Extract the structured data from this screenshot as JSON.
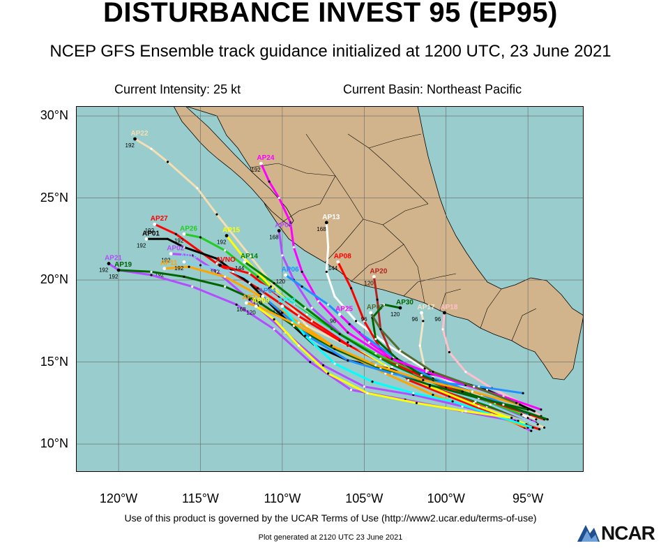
{
  "title": "DISTURBANCE INVEST 95 (EP95)",
  "subtitle": "NCEP GFS Ensemble track guidance initialized at 1200 UTC, 23 June 2021",
  "current_intensity": "Current Intensity: 25 kt",
  "current_basin": "Current Basin: Northeast Pacific",
  "terms": "Use of this product is governed by the UCAR Terms of Use (http://www2.ucar.edu/terms-of-use)",
  "generated": "Plot generated at 2120 UTC   23 June 2021",
  "logo_text": "NCAR",
  "colors": {
    "ocean": "#99cccc",
    "land": "#d2b48c",
    "border": "#000000"
  },
  "chart_data": {
    "type": "scatter",
    "x_ticks": [
      "120°W",
      "115°W",
      "110°W",
      "105°W",
      "100°W",
      "95°W"
    ],
    "y_ticks": [
      "30°N",
      "25°N",
      "20°N",
      "15°N",
      "10°N"
    ],
    "xlim": [
      -122.6,
      -91.6
    ],
    "ylim": [
      8.3,
      30.6
    ],
    "grid": true,
    "series": [
      {
        "name": "AP22",
        "color": "#f5deb3",
        "label_hour": "192",
        "points": [
          [
            -94.0,
            11.0
          ],
          [
            -97.0,
            12.3
          ],
          [
            -100.0,
            13.2
          ],
          [
            -103.0,
            14.6
          ],
          [
            -106.0,
            16.0
          ],
          [
            -108.5,
            17.2
          ],
          [
            -110.0,
            19.0
          ],
          [
            -112.0,
            21.5
          ],
          [
            -114.0,
            24.0
          ],
          [
            -115.2,
            25.6
          ],
          [
            -117.0,
            27.2
          ],
          [
            -118.0,
            28.0
          ],
          [
            -119.0,
            28.6
          ]
        ]
      },
      {
        "name": "AP24",
        "color": "#ff00ff",
        "label_hour": "192",
        "points": [
          [
            -94.5,
            11.3
          ],
          [
            -97.5,
            12.6
          ],
          [
            -100.5,
            13.7
          ],
          [
            -103.5,
            15.2
          ],
          [
            -106.0,
            16.8
          ],
          [
            -107.8,
            18.7
          ],
          [
            -108.8,
            20.5
          ],
          [
            -109.3,
            22.0
          ],
          [
            -109.5,
            23.5
          ],
          [
            -110.2,
            25.0
          ],
          [
            -110.8,
            26.0
          ],
          [
            -111.3,
            27.1
          ]
        ]
      },
      {
        "name": "AP13",
        "color": "#ffffff",
        "label_hour": "168",
        "points": [
          [
            -95.0,
            11.6
          ],
          [
            -98.0,
            13.0
          ],
          [
            -101.0,
            14.4
          ],
          [
            -103.5,
            16.0
          ],
          [
            -105.5,
            17.5
          ],
          [
            -106.8,
            19.0
          ],
          [
            -107.3,
            20.5
          ],
          [
            -107.2,
            22.0
          ],
          [
            -107.3,
            23.5
          ]
        ]
      },
      {
        "name": "AP05",
        "color": "#b44dff",
        "label_hour": "168",
        "points": [
          [
            -94.8,
            10.8
          ],
          [
            -97.7,
            12.2
          ],
          [
            -100.8,
            13.4
          ],
          [
            -103.8,
            15.0
          ],
          [
            -106.3,
            16.6
          ],
          [
            -108.2,
            18.3
          ],
          [
            -109.3,
            20.0
          ],
          [
            -110.0,
            21.5
          ],
          [
            -110.2,
            23.0
          ]
        ]
      },
      {
        "name": "AP08",
        "color": "#ff0000",
        "label_hour": "144",
        "points": [
          [
            -94.3,
            10.9
          ],
          [
            -97.0,
            11.8
          ],
          [
            -99.8,
            12.9
          ],
          [
            -102.3,
            13.9
          ],
          [
            -104.0,
            15.8
          ],
          [
            -105.0,
            17.5
          ],
          [
            -105.8,
            19.5
          ],
          [
            -106.6,
            21.1
          ]
        ]
      },
      {
        "name": "AP20",
        "color": "#b22222",
        "label_hour": "120",
        "points": [
          [
            -94.8,
            11.4
          ],
          [
            -97.5,
            12.3
          ],
          [
            -100.0,
            13.4
          ],
          [
            -102.0,
            14.2
          ],
          [
            -103.3,
            15.4
          ],
          [
            -104.0,
            17.0
          ],
          [
            -104.2,
            18.8
          ],
          [
            -104.4,
            20.2
          ]
        ]
      },
      {
        "name": "AP17",
        "color": "#f0e6c8",
        "label_hour": "96",
        "points": [
          [
            -94.5,
            11.5
          ],
          [
            -96.3,
            12.3
          ],
          [
            -98.5,
            13.2
          ],
          [
            -100.5,
            13.8
          ],
          [
            -101.3,
            14.6
          ],
          [
            -101.6,
            16.0
          ],
          [
            -101.4,
            17.5
          ],
          [
            -101.5,
            18.0
          ]
        ]
      },
      {
        "name": "AP18",
        "color": "#ffc0cb",
        "label_hour": "96",
        "points": [
          [
            -94.2,
            11.7
          ],
          [
            -95.6,
            12.6
          ],
          [
            -97.2,
            13.4
          ],
          [
            -98.8,
            14.4
          ],
          [
            -99.8,
            15.6
          ],
          [
            -100.2,
            17.0
          ],
          [
            -100.1,
            18.0
          ]
        ]
      },
      {
        "name": "AP27",
        "color": "#ff0000",
        "label_hour": "192",
        "points": [
          [
            -95.2,
            11.0
          ],
          [
            -98.3,
            12.5
          ],
          [
            -101.3,
            13.8
          ],
          [
            -104.0,
            15.0
          ],
          [
            -106.5,
            16.3
          ],
          [
            -109.0,
            17.8
          ],
          [
            -111.5,
            19.5
          ],
          [
            -114.0,
            21.0
          ],
          [
            -116.5,
            22.8
          ],
          [
            -117.8,
            23.4
          ]
        ]
      },
      {
        "name": "AP26",
        "color": "#22cc22",
        "label_hour": "192",
        "points": [
          [
            -95.4,
            11.8
          ],
          [
            -98.5,
            13.0
          ],
          [
            -101.5,
            14.2
          ],
          [
            -104.3,
            15.5
          ],
          [
            -107.0,
            17.0
          ],
          [
            -109.3,
            18.5
          ],
          [
            -111.5,
            20.2
          ],
          [
            -113.5,
            21.8
          ],
          [
            -115.0,
            22.6
          ],
          [
            -116.0,
            22.8
          ]
        ]
      },
      {
        "name": "AP15",
        "color": "#ffff00",
        "label_hour": "192",
        "points": [
          [
            -95.1,
            11.2
          ],
          [
            -98.0,
            12.3
          ],
          [
            -101.0,
            13.5
          ],
          [
            -103.7,
            14.8
          ],
          [
            -106.2,
            16.3
          ],
          [
            -108.6,
            17.8
          ],
          [
            -110.7,
            19.6
          ],
          [
            -112.3,
            21.3
          ],
          [
            -113.4,
            22.7
          ]
        ]
      },
      {
        "name": "AP01",
        "color": "#000000",
        "label_hour": "192",
        "points": [
          [
            -94.6,
            12.0
          ],
          [
            -97.5,
            13.3
          ],
          [
            -100.5,
            14.2
          ],
          [
            -103.5,
            14.6
          ],
          [
            -106.0,
            15.1
          ],
          [
            -108.0,
            16.0
          ],
          [
            -110.0,
            17.8
          ],
          [
            -112.0,
            19.8
          ],
          [
            -114.0,
            21.3
          ],
          [
            -116.0,
            22.0
          ],
          [
            -117.0,
            22.5
          ],
          [
            -118.3,
            22.5
          ]
        ]
      },
      {
        "name": "AP02",
        "color": "#b44dff",
        "label_hour": "192",
        "points": [
          [
            -95.6,
            11.4
          ],
          [
            -99.0,
            12.3
          ],
          [
            -102.0,
            13.0
          ],
          [
            -105.0,
            13.5
          ],
          [
            -107.5,
            14.8
          ],
          [
            -109.8,
            16.8
          ],
          [
            -112.0,
            18.8
          ],
          [
            -114.0,
            20.5
          ],
          [
            -115.5,
            21.5
          ],
          [
            -116.8,
            21.6
          ]
        ]
      },
      {
        "name": "AVNO",
        "color": "#ff0000",
        "label_hour": "192",
        "points": [
          [
            -94.0,
            11.5
          ],
          [
            -97.0,
            12.5
          ],
          [
            -100.0,
            13.5
          ],
          [
            -103.0,
            14.8
          ],
          [
            -105.8,
            16.0
          ],
          [
            -108.2,
            17.5
          ],
          [
            -110.2,
            19.0
          ],
          [
            -112.0,
            20.4
          ],
          [
            -113.8,
            20.9
          ]
        ]
      },
      {
        "name": "AP14",
        "color": "#008000",
        "label_hour": "144",
        "points": [
          [
            -95.3,
            11.6
          ],
          [
            -98.2,
            12.6
          ],
          [
            -101.2,
            13.8
          ],
          [
            -104.0,
            15.2
          ],
          [
            -106.5,
            16.7
          ],
          [
            -108.6,
            18.3
          ],
          [
            -110.5,
            19.8
          ],
          [
            -112.3,
            21.1
          ]
        ]
      },
      {
        "name": "AP11",
        "color": "#ffa500",
        "label_hour": "192",
        "points": [
          [
            -95.0,
            11.0
          ],
          [
            -97.8,
            12.0
          ],
          [
            -100.8,
            13.0
          ],
          [
            -103.7,
            14.3
          ],
          [
            -106.5,
            15.7
          ],
          [
            -109.0,
            17.4
          ],
          [
            -111.3,
            19.0
          ],
          [
            -113.5,
            20.2
          ],
          [
            -115.7,
            20.8
          ],
          [
            -117.2,
            20.7
          ]
        ]
      },
      {
        "name": "AP10",
        "color": "#87ceeb",
        "label_hour": "192",
        "points": [
          [
            -94.4,
            11.2
          ],
          [
            -97.3,
            12.4
          ],
          [
            -100.3,
            13.4
          ],
          [
            -103.3,
            14.7
          ],
          [
            -106.0,
            16.2
          ],
          [
            -108.5,
            17.9
          ],
          [
            -110.8,
            19.5
          ],
          [
            -113.0,
            20.5
          ],
          [
            -115.0,
            20.9
          ],
          [
            -116.0,
            21.1
          ]
        ]
      },
      {
        "name": "AP06",
        "color": "#1e90ff",
        "label_hour": "120",
        "points": [
          [
            -94.9,
            11.8
          ],
          [
            -97.8,
            13.0
          ],
          [
            -100.8,
            14.0
          ],
          [
            -103.2,
            15.3
          ],
          [
            -105.3,
            16.8
          ],
          [
            -107.2,
            18.5
          ],
          [
            -108.8,
            19.6
          ],
          [
            -109.8,
            20.3
          ]
        ]
      },
      {
        "name": "AP21",
        "color": "#b44dff",
        "label_hour": "192",
        "points": [
          [
            -95.8,
            11.4
          ],
          [
            -99.0,
            12.0
          ],
          [
            -102.5,
            12.7
          ],
          [
            -105.8,
            13.3
          ],
          [
            -108.3,
            15.0
          ],
          [
            -110.5,
            17.0
          ],
          [
            -112.8,
            18.5
          ],
          [
            -115.5,
            19.6
          ],
          [
            -118.0,
            20.3
          ],
          [
            -120.0,
            20.6
          ],
          [
            -120.6,
            21.0
          ]
        ]
      },
      {
        "name": "AP19",
        "color": "#006400",
        "label_hour": "192",
        "points": [
          [
            -95.0,
            12.1
          ],
          [
            -98.0,
            12.8
          ],
          [
            -101.0,
            13.6
          ],
          [
            -104.0,
            14.6
          ],
          [
            -106.8,
            15.8
          ],
          [
            -109.3,
            17.2
          ],
          [
            -111.5,
            18.7
          ],
          [
            -113.5,
            19.6
          ],
          [
            -116.0,
            20.2
          ],
          [
            -118.0,
            20.5
          ],
          [
            -120.0,
            20.6
          ]
        ]
      },
      {
        "name": "AP30",
        "color": "#006400",
        "label_hour": "120",
        "points": [
          [
            -93.8,
            11.5
          ],
          [
            -96.5,
            12.4
          ],
          [
            -99.0,
            13.2
          ],
          [
            -101.5,
            14.2
          ],
          [
            -103.0,
            15.2
          ],
          [
            -104.3,
            16.4
          ],
          [
            -104.5,
            17.7
          ],
          [
            -103.8,
            18.5
          ],
          [
            -102.8,
            18.3
          ]
        ]
      },
      {
        "name": "AP04",
        "color": "#1e90ff",
        "label_hour": "120",
        "points": [
          [
            -95.3,
            13.1
          ],
          [
            -98.0,
            13.5
          ],
          [
            -100.8,
            13.8
          ],
          [
            -103.3,
            14.3
          ],
          [
            -106.0,
            15.1
          ],
          [
            -108.3,
            16.5
          ],
          [
            -110.0,
            18.0
          ],
          [
            -111.2,
            19.0
          ]
        ]
      },
      {
        "name": "AP12",
        "color": "#00ffff",
        "label_hour": "120",
        "points": [
          [
            -94.7,
            11.0
          ],
          [
            -97.2,
            11.8
          ],
          [
            -99.6,
            12.6
          ],
          [
            -102.0,
            13.1
          ],
          [
            -104.5,
            13.8
          ],
          [
            -106.8,
            14.9
          ],
          [
            -108.6,
            16.6
          ],
          [
            -110.0,
            18.4
          ]
        ]
      },
      {
        "name": "AP23",
        "color": "#ffa500",
        "label_hour": "168",
        "points": [
          [
            -95.5,
            12.4
          ],
          [
            -98.4,
            13.2
          ],
          [
            -101.4,
            13.9
          ],
          [
            -104.3,
            14.8
          ],
          [
            -107.0,
            16.0
          ],
          [
            -109.4,
            17.4
          ],
          [
            -111.5,
            18.4
          ],
          [
            -112.2,
            18.6
          ]
        ]
      },
      {
        "name": "AP09",
        "color": "#ffff00",
        "label_hour": "120",
        "points": [
          [
            -96.0,
            11.6
          ],
          [
            -98.8,
            12.0
          ],
          [
            -101.8,
            12.5
          ],
          [
            -104.8,
            13.1
          ],
          [
            -107.2,
            14.3
          ],
          [
            -109.0,
            16.0
          ],
          [
            -110.5,
            17.6
          ],
          [
            -111.6,
            18.4
          ]
        ]
      },
      {
        "name": "AP25",
        "color": "#ff00ff",
        "label_hour": "96",
        "points": [
          [
            -94.2,
            12.1
          ],
          [
            -96.5,
            12.9
          ],
          [
            -98.8,
            13.6
          ],
          [
            -101.2,
            14.4
          ],
          [
            -103.3,
            15.2
          ],
          [
            -104.7,
            16.2
          ],
          [
            -105.9,
            17.3
          ],
          [
            -106.5,
            17.9
          ]
        ]
      },
      {
        "name": "AP07",
        "color": "#556b2f",
        "label_hour": "96",
        "points": [
          [
            -95.7,
            12.5
          ],
          [
            -98.3,
            13.5
          ],
          [
            -100.8,
            14.4
          ],
          [
            -102.8,
            15.7
          ],
          [
            -104.0,
            17.0
          ],
          [
            -104.6,
            18.0
          ]
        ]
      }
    ]
  }
}
